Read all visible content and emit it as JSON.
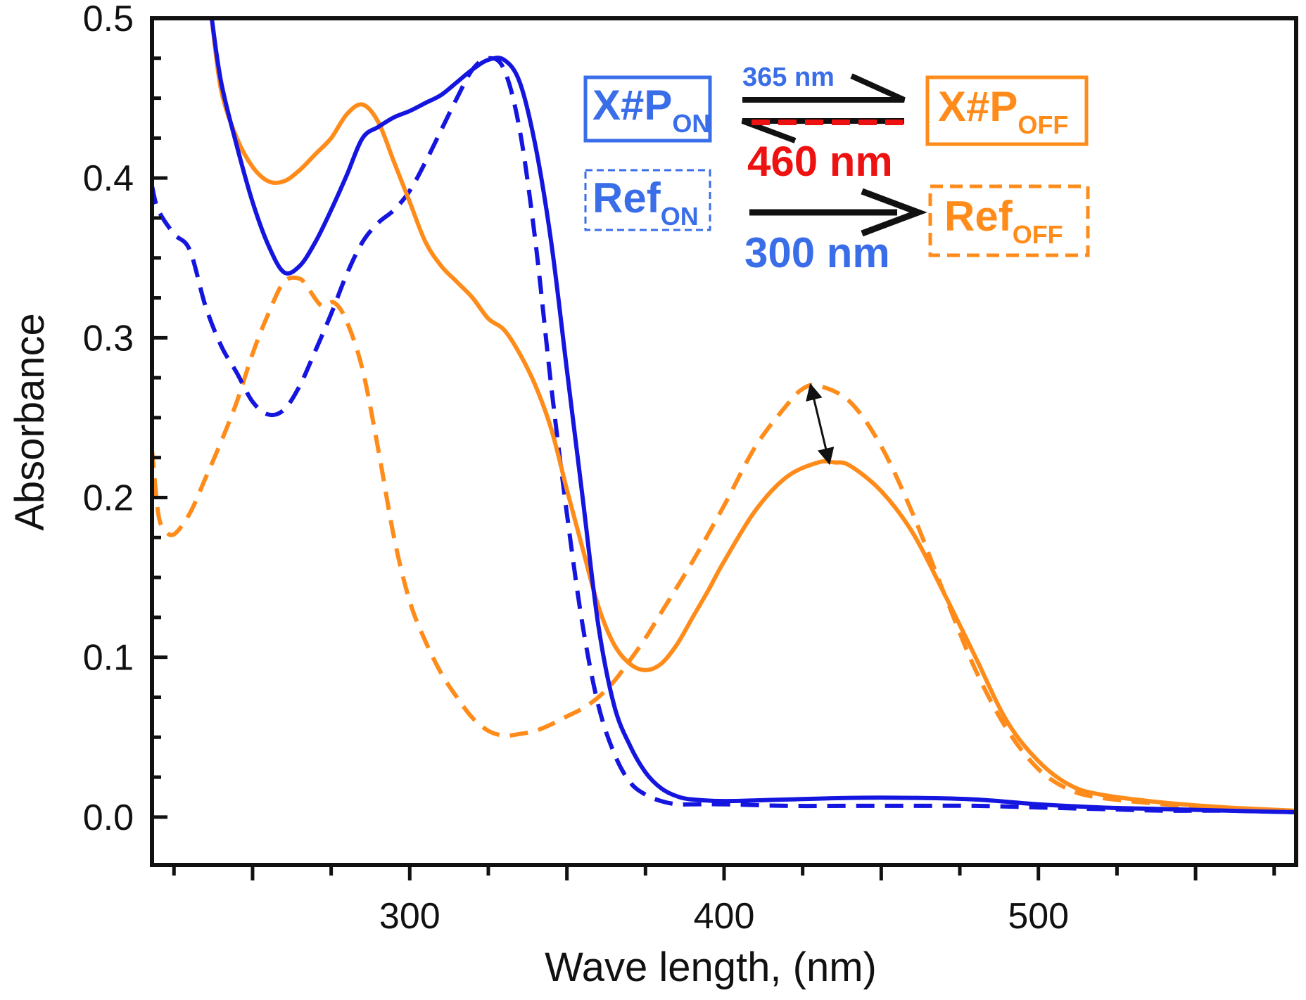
{
  "chart_data": {
    "type": "line",
    "title": "",
    "xlabel": "Wave length, (nm)",
    "ylabel": "Absorbance",
    "xlim": [
      218,
      582
    ],
    "ylim": [
      -0.03,
      0.5
    ],
    "x_ticks": [
      300,
      400,
      500
    ],
    "x_minor_ticks": [
      225,
      250,
      275,
      300,
      325,
      350,
      375,
      400,
      425,
      450,
      475,
      500,
      525,
      550,
      575
    ],
    "y_ticks": [
      "0.0",
      "0.1",
      "0.2",
      "0.3",
      "0.4",
      "0.5"
    ],
    "colors": {
      "blue": "#1515e0",
      "orange": "#ff8c1a",
      "red": "#ee1111",
      "legend_blue": "#3a6ee8"
    },
    "series": [
      {
        "name": "X#P ON",
        "color": "#1515e0",
        "dash": "solid",
        "x": [
          237,
          240,
          245,
          250,
          255,
          260,
          265,
          270,
          275,
          280,
          285,
          290,
          295,
          300,
          305,
          310,
          315,
          320,
          325,
          330,
          335,
          340,
          345,
          350,
          355,
          360,
          365,
          370,
          375,
          380,
          385,
          390,
          400,
          420,
          440,
          460,
          480,
          500,
          520,
          540,
          560,
          582
        ],
        "y": [
          0.5,
          0.46,
          0.42,
          0.385,
          0.358,
          0.341,
          0.345,
          0.36,
          0.38,
          0.402,
          0.425,
          0.432,
          0.438,
          0.442,
          0.447,
          0.452,
          0.46,
          0.468,
          0.474,
          0.474,
          0.46,
          0.42,
          0.36,
          0.28,
          0.2,
          0.12,
          0.07,
          0.045,
          0.028,
          0.018,
          0.013,
          0.011,
          0.01,
          0.011,
          0.012,
          0.012,
          0.011,
          0.008,
          0.006,
          0.005,
          0.004,
          0.003
        ]
      },
      {
        "name": "X#P OFF",
        "color": "#ff8c1a",
        "dash": "solid",
        "x": [
          237,
          240,
          245,
          250,
          255,
          260,
          265,
          270,
          275,
          280,
          285,
          290,
          295,
          300,
          305,
          310,
          315,
          320,
          325,
          330,
          335,
          340,
          345,
          350,
          355,
          360,
          365,
          370,
          375,
          380,
          385,
          390,
          395,
          400,
          410,
          420,
          430,
          435,
          440,
          450,
          460,
          470,
          480,
          490,
          500,
          510,
          520,
          540,
          560,
          582
        ],
        "y": [
          0.5,
          0.455,
          0.425,
          0.407,
          0.398,
          0.398,
          0.405,
          0.415,
          0.425,
          0.44,
          0.446,
          0.435,
          0.41,
          0.385,
          0.36,
          0.345,
          0.335,
          0.325,
          0.312,
          0.305,
          0.29,
          0.27,
          0.243,
          0.205,
          0.168,
          0.132,
          0.108,
          0.096,
          0.092,
          0.096,
          0.108,
          0.125,
          0.142,
          0.16,
          0.192,
          0.213,
          0.222,
          0.222,
          0.22,
          0.204,
          0.178,
          0.14,
          0.1,
          0.06,
          0.035,
          0.02,
          0.014,
          0.009,
          0.006,
          0.004
        ]
      },
      {
        "name": "Ref ON",
        "color": "#1515e0",
        "dash": "dashed",
        "x": [
          218,
          220,
          225,
          230,
          235,
          240,
          245,
          250,
          255,
          260,
          265,
          270,
          275,
          280,
          285,
          290,
          295,
          300,
          305,
          310,
          315,
          320,
          325,
          330,
          335,
          340,
          345,
          350,
          355,
          360,
          365,
          370,
          375,
          380,
          385,
          390,
          400,
          420,
          440,
          460,
          480,
          500,
          520,
          540,
          560,
          582
        ],
        "y": [
          0.395,
          0.38,
          0.365,
          0.355,
          0.32,
          0.295,
          0.278,
          0.26,
          0.252,
          0.255,
          0.27,
          0.292,
          0.315,
          0.34,
          0.36,
          0.372,
          0.38,
          0.392,
          0.41,
          0.43,
          0.45,
          0.468,
          0.475,
          0.468,
          0.43,
          0.36,
          0.27,
          0.19,
          0.12,
          0.07,
          0.04,
          0.022,
          0.014,
          0.01,
          0.008,
          0.008,
          0.008,
          0.007,
          0.007,
          0.007,
          0.007,
          0.006,
          0.005,
          0.004,
          0.004,
          0.003
        ]
      },
      {
        "name": "Ref OFF",
        "color": "#ff8c1a",
        "dash": "dashed",
        "x": [
          218,
          220,
          222,
          225,
          230,
          235,
          240,
          245,
          250,
          255,
          260,
          265,
          268,
          272,
          276,
          280,
          285,
          290,
          295,
          300,
          305,
          310,
          315,
          320,
          325,
          330,
          335,
          340,
          345,
          350,
          355,
          360,
          365,
          370,
          375,
          380,
          390,
          400,
          410,
          420,
          425,
          430,
          440,
          450,
          460,
          470,
          480,
          490,
          500,
          510,
          520,
          540,
          560,
          582
        ],
        "y": [
          0.23,
          0.19,
          0.18,
          0.177,
          0.19,
          0.212,
          0.235,
          0.26,
          0.29,
          0.315,
          0.335,
          0.337,
          0.33,
          0.32,
          0.322,
          0.31,
          0.28,
          0.23,
          0.175,
          0.135,
          0.11,
          0.09,
          0.075,
          0.062,
          0.054,
          0.051,
          0.052,
          0.054,
          0.058,
          0.063,
          0.068,
          0.075,
          0.085,
          0.098,
          0.112,
          0.128,
          0.16,
          0.195,
          0.232,
          0.258,
          0.268,
          0.27,
          0.26,
          0.232,
          0.19,
          0.14,
          0.092,
          0.055,
          0.03,
          0.017,
          0.012,
          0.008,
          0.005,
          0.003
        ]
      }
    ],
    "annotations": {
      "xp_on": {
        "main": "X#P",
        "sub": "ON"
      },
      "xp_off": {
        "main": "X#P",
        "sub": "OFF"
      },
      "ref_on": {
        "main": "Ref",
        "sub": "ON"
      },
      "ref_off": {
        "main": "Ref",
        "sub": "OFF"
      },
      "wl_365": "365 nm",
      "wl_460": "460 nm",
      "wl_300": "300 nm",
      "diff_arrow_x": [
        428,
        433
      ],
      "diff_arrow_y": [
        0.27,
        0.222
      ]
    }
  }
}
